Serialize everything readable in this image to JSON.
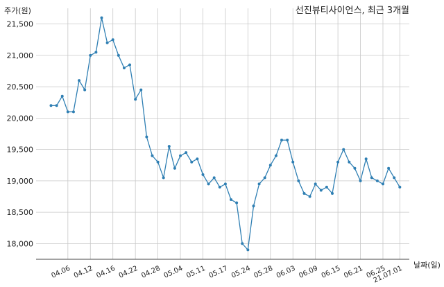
{
  "chart_data": {
    "type": "line",
    "title": "선진뷰티사이언스, 최근 3개월",
    "ylabel": "주가(원)",
    "xlabel": "날짜(일)",
    "ylim": [
      17750,
      21750
    ],
    "yticks": [
      {
        "value": 18000,
        "label": "18,000"
      },
      {
        "value": 18500,
        "label": "18,500"
      },
      {
        "value": 19000,
        "label": "19,000"
      },
      {
        "value": 19500,
        "label": "19,500"
      },
      {
        "value": 20000,
        "label": "20,000"
      },
      {
        "value": 20500,
        "label": "20,500"
      },
      {
        "value": 21000,
        "label": "21,000"
      },
      {
        "value": 21500,
        "label": "21,500"
      }
    ],
    "xticks": [
      {
        "index": 3,
        "label": "04.06"
      },
      {
        "index": 7,
        "label": "04.12"
      },
      {
        "index": 11,
        "label": "04.16"
      },
      {
        "index": 15,
        "label": "04.22"
      },
      {
        "index": 19,
        "label": "04.28"
      },
      {
        "index": 23,
        "label": "05.04"
      },
      {
        "index": 27,
        "label": "05.11"
      },
      {
        "index": 31,
        "label": "05.17"
      },
      {
        "index": 35,
        "label": "05.24"
      },
      {
        "index": 39,
        "label": "05.28"
      },
      {
        "index": 43,
        "label": "06.03"
      },
      {
        "index": 47,
        "label": "06.09"
      },
      {
        "index": 51,
        "label": "06.15"
      },
      {
        "index": 55,
        "label": "06.21"
      },
      {
        "index": 59,
        "label": "06.25"
      },
      {
        "index": 62,
        "label": "21.07.01"
      }
    ],
    "grid": true,
    "line_color": "#2f7fb3",
    "values": [
      20200,
      20200,
      20350,
      20100,
      20100,
      20600,
      20450,
      21000,
      21050,
      21600,
      21200,
      21250,
      21000,
      20800,
      20850,
      20300,
      20450,
      19700,
      19400,
      19300,
      19050,
      19550,
      19200,
      19400,
      19450,
      19300,
      19350,
      19100,
      18950,
      19050,
      18900,
      18950,
      18700,
      18650,
      18000,
      17900,
      18600,
      18950,
      19050,
      19250,
      19400,
      19650,
      19650,
      19300,
      19000,
      18800,
      18750,
      18950,
      18850,
      18900,
      18800,
      19300,
      19500,
      19300,
      19200,
      19000,
      19350,
      19050,
      19000,
      18950,
      19200,
      19050,
      18900
    ]
  }
}
